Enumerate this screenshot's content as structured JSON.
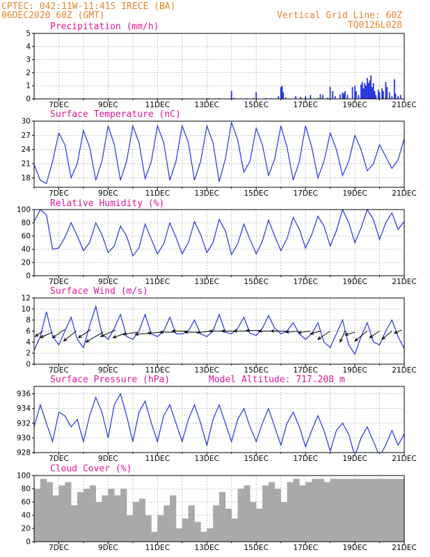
{
  "header": {
    "line1": "CPTEC:  042:11W-11:41S  IRECE (BA)",
    "line2": "06DEC2020 60Z (GMT)",
    "grid_note": "Vertical Grid Line: 60Z",
    "run_code": "TQ0126L028"
  },
  "colors": {
    "header": "#e8862a",
    "title": "#e0179b",
    "line": "#2233dd",
    "cloud": "#a9a9a9"
  },
  "chart_data": [
    {
      "id": "precip",
      "type": "bar",
      "title": "Precipitation (mm/h)",
      "ylim": [
        0,
        5
      ],
      "yticks": [
        0,
        1,
        2,
        3,
        4,
        5
      ],
      "x_ticks": [
        "7DEC",
        "9DEC",
        "11DEC",
        "13DEC",
        "15DEC",
        "17DEC",
        "19DEC",
        "21DEC"
      ],
      "bars": [
        [
          0.3,
          0.03
        ],
        [
          0.5,
          0.04
        ],
        [
          1.1,
          0.03
        ],
        [
          1.7,
          0.03
        ],
        [
          2.3,
          0.04
        ],
        [
          2.9,
          0.03
        ],
        [
          3.5,
          0.03
        ],
        [
          4.1,
          0.04
        ],
        [
          4.7,
          0.03
        ],
        [
          5.3,
          0.03
        ],
        [
          5.9,
          0.04
        ],
        [
          6.5,
          0.03
        ],
        [
          7.1,
          0.04
        ],
        [
          7.5,
          0.05
        ],
        [
          8.0,
          0.6
        ],
        [
          8.1,
          0.08
        ],
        [
          8.6,
          0.05
        ],
        [
          8.9,
          0.05
        ],
        [
          9.0,
          0.5
        ],
        [
          9.4,
          0.06
        ],
        [
          9.6,
          0.05
        ],
        [
          9.9,
          0.2
        ],
        [
          10.0,
          0.9
        ],
        [
          10.05,
          1.0
        ],
        [
          10.1,
          0.5
        ],
        [
          10.2,
          0.1
        ],
        [
          10.6,
          0.2
        ],
        [
          10.8,
          0.15
        ],
        [
          11.0,
          0.2
        ],
        [
          11.2,
          0.3
        ],
        [
          11.5,
          0.08
        ],
        [
          11.6,
          0.35
        ],
        [
          11.7,
          0.3
        ],
        [
          11.9,
          0.1
        ],
        [
          12.0,
          0.9
        ],
        [
          12.1,
          0.6
        ],
        [
          12.2,
          0.2
        ],
        [
          12.4,
          0.35
        ],
        [
          12.5,
          0.5
        ],
        [
          12.55,
          0.4
        ],
        [
          12.6,
          0.6
        ],
        [
          12.7,
          0.3
        ],
        [
          12.9,
          0.9
        ],
        [
          13.0,
          1.0
        ],
        [
          13.05,
          0.6
        ],
        [
          13.15,
          0.3
        ],
        [
          13.25,
          1.1
        ],
        [
          13.3,
          1.3
        ],
        [
          13.35,
          0.8
        ],
        [
          13.4,
          1.2
        ],
        [
          13.45,
          1.0
        ],
        [
          13.5,
          1.6
        ],
        [
          13.55,
          1.2
        ],
        [
          13.6,
          1.4
        ],
        [
          13.65,
          1.8
        ],
        [
          13.7,
          0.9
        ],
        [
          13.75,
          1.2
        ],
        [
          13.8,
          0.6
        ],
        [
          13.85,
          0.3
        ],
        [
          13.95,
          0.7
        ],
        [
          14.0,
          0.5
        ],
        [
          14.1,
          0.8
        ],
        [
          14.15,
          0.6
        ],
        [
          14.25,
          1.3
        ],
        [
          14.3,
          0.9
        ],
        [
          14.4,
          0.5
        ],
        [
          14.5,
          0.2
        ],
        [
          14.6,
          1.5
        ],
        [
          14.65,
          0.4
        ],
        [
          14.75,
          0.2
        ],
        [
          14.85,
          0.3
        ]
      ]
    },
    {
      "id": "temp",
      "type": "line",
      "title": "Surface Temperature (nC)",
      "ylim": [
        16,
        30
      ],
      "yticks": [
        18,
        21,
        24,
        27,
        30
      ],
      "x_ticks": [
        "7DEC",
        "9DEC",
        "11DEC",
        "13DEC",
        "15DEC",
        "17DEC",
        "19DEC",
        "21DEC"
      ],
      "x": [
        0.0,
        0.25,
        0.5,
        0.75,
        1.0,
        1.25,
        1.5,
        1.75,
        2.0,
        2.25,
        2.5,
        2.75,
        3.0,
        3.25,
        3.5,
        3.75,
        4.0,
        4.25,
        4.5,
        4.75,
        5.0,
        5.25,
        5.5,
        5.75,
        6.0,
        6.25,
        6.5,
        6.75,
        7.0,
        7.25,
        7.5,
        7.75,
        8.0,
        8.25,
        8.5,
        8.75,
        9.0,
        9.25,
        9.5,
        9.75,
        10.0,
        10.25,
        10.5,
        10.75,
        11.0,
        11.25,
        11.5,
        11.75,
        12.0,
        12.25,
        12.5,
        12.75,
        13.0,
        13.25,
        13.5,
        13.75,
        14.0,
        14.25,
        14.5,
        14.75,
        15.0
      ],
      "y": [
        20.8,
        17.5,
        16.8,
        21.5,
        27.5,
        25.0,
        18.0,
        21.0,
        28.0,
        24.5,
        17.5,
        21.5,
        29.0,
        25.0,
        17.5,
        21.5,
        29.0,
        25.5,
        17.8,
        21.5,
        29.0,
        25.5,
        17.5,
        21.5,
        29.0,
        25.5,
        17.5,
        21.5,
        29.0,
        25.5,
        17.2,
        22.0,
        29.8,
        26.0,
        19.2,
        21.5,
        28.5,
        25.0,
        18.5,
        22.0,
        29.0,
        24.5,
        17.5,
        21.5,
        29.0,
        24.5,
        18.0,
        21.5,
        27.5,
        24.0,
        18.5,
        21.5,
        27.0,
        24.0,
        19.5,
        21.0,
        25.0,
        22.5,
        20.0,
        21.8,
        26.3
      ]
    },
    {
      "id": "rh",
      "type": "line",
      "title": "Relative Humidity (%)",
      "ylim": [
        0,
        100
      ],
      "yticks": [
        0,
        20,
        40,
        60,
        80,
        100
      ],
      "x_ticks": [
        "7DEC",
        "9DEC",
        "11DEC",
        "13DEC",
        "15DEC",
        "17DEC",
        "19DEC",
        "21DEC"
      ],
      "x": [
        0.0,
        0.25,
        0.5,
        0.75,
        1.0,
        1.25,
        1.5,
        1.75,
        2.0,
        2.25,
        2.5,
        2.75,
        3.0,
        3.25,
        3.5,
        3.75,
        4.0,
        4.25,
        4.5,
        4.75,
        5.0,
        5.25,
        5.5,
        5.75,
        6.0,
        6.25,
        6.5,
        6.75,
        7.0,
        7.25,
        7.5,
        7.75,
        8.0,
        8.25,
        8.5,
        8.75,
        9.0,
        9.25,
        9.5,
        9.75,
        10.0,
        10.25,
        10.5,
        10.75,
        11.0,
        11.25,
        11.5,
        11.75,
        12.0,
        12.25,
        12.5,
        12.75,
        13.0,
        13.25,
        13.5,
        13.75,
        14.0,
        14.25,
        14.5,
        14.75,
        15.0
      ],
      "y": [
        82,
        100,
        92,
        40,
        42,
        58,
        80,
        60,
        38,
        50,
        80,
        62,
        35,
        45,
        75,
        60,
        30,
        42,
        78,
        55,
        33,
        48,
        80,
        58,
        33,
        50,
        82,
        62,
        35,
        50,
        85,
        68,
        32,
        48,
        78,
        55,
        33,
        52,
        84,
        60,
        38,
        56,
        88,
        70,
        42,
        62,
        90,
        75,
        45,
        68,
        100,
        80,
        50,
        72,
        100,
        85,
        55,
        80,
        95,
        70,
        82
      ]
    },
    {
      "id": "wind",
      "type": "line",
      "title": "Surface Wind (m/s)",
      "ylim": [
        0,
        12
      ],
      "yticks": [
        0,
        2,
        4,
        6,
        8,
        10,
        12
      ],
      "x_ticks": [
        "7DEC",
        "9DEC",
        "11DEC",
        "13DEC",
        "15DEC",
        "17DEC",
        "19DEC",
        "21DEC"
      ],
      "x": [
        0.0,
        0.25,
        0.5,
        0.75,
        1.0,
        1.25,
        1.5,
        1.75,
        2.0,
        2.25,
        2.5,
        2.75,
        3.0,
        3.25,
        3.5,
        3.75,
        4.0,
        4.25,
        4.5,
        4.75,
        5.0,
        5.25,
        5.5,
        5.75,
        6.0,
        6.25,
        6.5,
        6.75,
        7.0,
        7.25,
        7.5,
        7.75,
        8.0,
        8.25,
        8.5,
        8.75,
        9.0,
        9.25,
        9.5,
        9.75,
        10.0,
        10.25,
        10.5,
        10.75,
        11.0,
        11.25,
        11.5,
        11.75,
        12.0,
        12.25,
        12.5,
        12.75,
        13.0,
        13.25,
        13.5,
        13.75,
        14.0,
        14.25,
        14.5,
        14.75,
        15.0
      ],
      "y": [
        2.5,
        5.0,
        9.5,
        5.0,
        3.5,
        6.0,
        8.5,
        4.5,
        3.0,
        7.0,
        10.5,
        5.5,
        4.5,
        6.5,
        9.0,
        5.0,
        4.5,
        6.0,
        9.0,
        5.5,
        5.0,
        6.0,
        8.5,
        5.5,
        5.5,
        6.0,
        8.0,
        5.5,
        5.0,
        6.0,
        9.0,
        5.8,
        5.5,
        6.5,
        8.5,
        5.6,
        5.2,
        6.5,
        8.8,
        6.5,
        5.5,
        6.0,
        7.5,
        5.5,
        4.5,
        5.5,
        7.5,
        4.0,
        3.0,
        5.5,
        8.0,
        3.5,
        1.8,
        5.0,
        7.5,
        4.0,
        3.5,
        6.0,
        8.0,
        5.0,
        2.8
      ],
      "arrows": [
        [
          0.35,
          6.0,
          -0.3,
          -1.0
        ],
        [
          0.75,
          5.8,
          -0.5,
          -1.0
        ],
        [
          1.25,
          6.3,
          -0.5,
          -1.5
        ],
        [
          1.7,
          6.0,
          -0.5,
          -1.8
        ],
        [
          2.3,
          6.3,
          -0.5,
          -1.5
        ],
        [
          2.8,
          5.8,
          -0.7,
          -1.8
        ],
        [
          3.3,
          6.2,
          -0.6,
          -1.2
        ],
        [
          3.7,
          5.6,
          -0.5,
          -0.8
        ],
        [
          4.2,
          5.8,
          -0.6,
          -0.4
        ],
        [
          4.7,
          5.6,
          -0.6,
          -0.2
        ],
        [
          5.2,
          5.8,
          -0.6,
          -0.2
        ],
        [
          5.7,
          5.8,
          -0.6,
          0.0
        ],
        [
          6.2,
          6.0,
          -0.6,
          0.0
        ],
        [
          6.7,
          5.8,
          -0.6,
          0.0
        ],
        [
          7.2,
          6.0,
          -0.6,
          -0.3
        ],
        [
          7.7,
          6.0,
          -0.6,
          0.0
        ],
        [
          8.2,
          6.0,
          -0.6,
          0.0
        ],
        [
          8.7,
          6.0,
          -0.6,
          0.0
        ],
        [
          9.2,
          6.1,
          -0.6,
          0.0
        ],
        [
          9.7,
          6.0,
          -0.6,
          0.0
        ],
        [
          10.2,
          6.0,
          -0.6,
          0.0
        ],
        [
          10.7,
          6.0,
          -0.5,
          -0.2
        ],
        [
          11.2,
          6.0,
          -0.5,
          -0.3
        ],
        [
          11.6,
          6.0,
          -0.4,
          -0.5
        ],
        [
          12.0,
          6.0,
          -0.5,
          -1.5
        ],
        [
          12.6,
          6.0,
          -0.2,
          -2.0
        ],
        [
          13.0,
          5.8,
          -0.4,
          -0.5
        ],
        [
          13.5,
          6.0,
          -0.5,
          -1.8
        ],
        [
          14.0,
          6.0,
          -0.4,
          -1.2
        ],
        [
          14.5,
          6.0,
          -0.4,
          -1.5
        ],
        [
          14.9,
          6.2,
          -0.3,
          -0.6
        ]
      ]
    },
    {
      "id": "pres",
      "type": "line",
      "title": "Surface Pressure (hPa)",
      "altitude_note": "Model Altitude: 717.208  m",
      "ylim": [
        928,
        937
      ],
      "yticks": [
        928,
        930,
        932,
        934,
        936
      ],
      "x_ticks": [
        "7DEC",
        "9DEC",
        "11DEC",
        "13DEC",
        "15DEC",
        "17DEC",
        "19DEC",
        "21DEC"
      ],
      "x": [
        0.0,
        0.25,
        0.5,
        0.75,
        1.0,
        1.25,
        1.5,
        1.75,
        2.0,
        2.25,
        2.5,
        2.75,
        3.0,
        3.25,
        3.5,
        3.75,
        4.0,
        4.25,
        4.5,
        4.75,
        5.0,
        5.25,
        5.5,
        5.75,
        6.0,
        6.25,
        6.5,
        6.75,
        7.0,
        7.25,
        7.5,
        7.75,
        8.0,
        8.25,
        8.5,
        8.75,
        9.0,
        9.25,
        9.5,
        9.75,
        10.0,
        10.25,
        10.5,
        10.75,
        11.0,
        11.25,
        11.5,
        11.75,
        12.0,
        12.25,
        12.5,
        12.75,
        13.0,
        13.25,
        13.5,
        13.75,
        14.0,
        14.25,
        14.5,
        14.75,
        15.0
      ],
      "y": [
        931.5,
        934.5,
        932.0,
        929.5,
        933.5,
        933.0,
        931.5,
        932.5,
        929.5,
        933.0,
        935.5,
        933.5,
        930.0,
        934.5,
        936.0,
        933.0,
        929.5,
        933.5,
        935.0,
        932.0,
        929.5,
        933.0,
        934.5,
        932.0,
        929.5,
        932.5,
        934.5,
        932.0,
        929.0,
        932.5,
        934.5,
        932.0,
        929.5,
        932.5,
        934.0,
        931.5,
        929.5,
        932.0,
        934.0,
        931.5,
        929.0,
        932.0,
        933.5,
        931.5,
        928.8,
        931.0,
        933.0,
        931.0,
        928.2,
        931.0,
        932.0,
        930.5,
        927.5,
        930.0,
        931.5,
        929.5,
        927.5,
        929.0,
        931.0,
        929.0,
        930.5
      ]
    },
    {
      "id": "cloud",
      "type": "bar",
      "title": "Cloud Cover (%)",
      "ylim": [
        0,
        100
      ],
      "yticks": [
        0,
        20,
        40,
        60,
        80,
        100
      ],
      "x_ticks": [
        "7DEC",
        "9DEC",
        "11DEC",
        "13DEC",
        "15DEC",
        "17DEC",
        "19DEC",
        "21DEC"
      ],
      "x": [
        0.0,
        0.25,
        0.5,
        0.75,
        1.0,
        1.25,
        1.5,
        1.75,
        2.0,
        2.25,
        2.5,
        2.75,
        3.0,
        3.25,
        3.5,
        3.75,
        4.0,
        4.25,
        4.5,
        4.75,
        5.0,
        5.25,
        5.5,
        5.75,
        6.0,
        6.25,
        6.5,
        6.75,
        7.0,
        7.25,
        7.5,
        7.75,
        8.0,
        8.25,
        8.5,
        8.75,
        9.0,
        9.25,
        9.5,
        9.75,
        10.0,
        10.25,
        10.5,
        10.75,
        11.0,
        11.25,
        11.5,
        11.75,
        12.0,
        12.25,
        12.5,
        12.75,
        13.0,
        13.25,
        13.5,
        13.75,
        14.0,
        14.25,
        14.5,
        14.75,
        15.0
      ],
      "y": [
        80,
        95,
        90,
        70,
        85,
        90,
        55,
        75,
        80,
        85,
        60,
        70,
        80,
        70,
        80,
        40,
        60,
        65,
        40,
        15,
        40,
        55,
        70,
        20,
        35,
        55,
        30,
        15,
        20,
        55,
        75,
        50,
        35,
        80,
        85,
        60,
        50,
        85,
        90,
        80,
        60,
        90,
        95,
        85,
        90,
        95,
        95,
        90,
        95,
        95,
        95,
        95,
        95,
        95,
        95,
        95,
        95,
        95,
        95,
        95,
        95
      ]
    }
  ]
}
